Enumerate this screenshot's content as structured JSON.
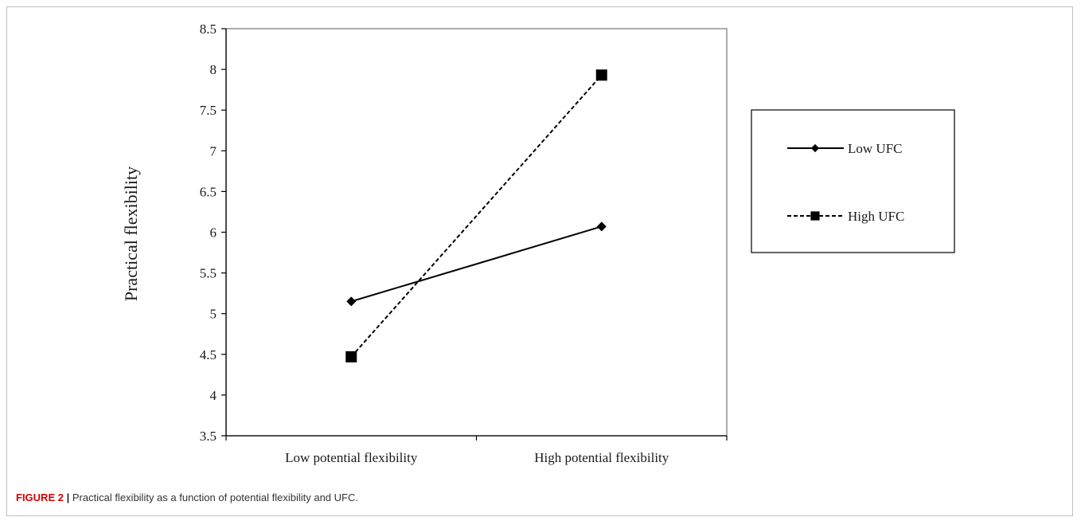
{
  "chart_data": {
    "type": "line",
    "categories": [
      "Low potential flexibility",
      "High potential flexibility"
    ],
    "series": [
      {
        "name": "Low UFC",
        "values": [
          5.15,
          6.07
        ],
        "marker": "diamond",
        "line_style": "solid",
        "color": "#000000"
      },
      {
        "name": "High UFC",
        "values": [
          4.47,
          7.93
        ],
        "marker": "square",
        "line_style": "dashed",
        "color": "#000000"
      }
    ],
    "xlabel": "",
    "ylabel": "Practical flexibility",
    "ylim": [
      3.5,
      8.5
    ],
    "yticks": [
      "3.5",
      "4",
      "4.5",
      "5",
      "5.5",
      "6",
      "6.5",
      "7",
      "7.5",
      "8",
      "8.5"
    ],
    "grid": false,
    "legend_position": "right"
  },
  "caption": {
    "label": "FIGURE 2",
    "separator": "|",
    "text": "Practical flexibility as a function of potential flexibility and UFC."
  }
}
